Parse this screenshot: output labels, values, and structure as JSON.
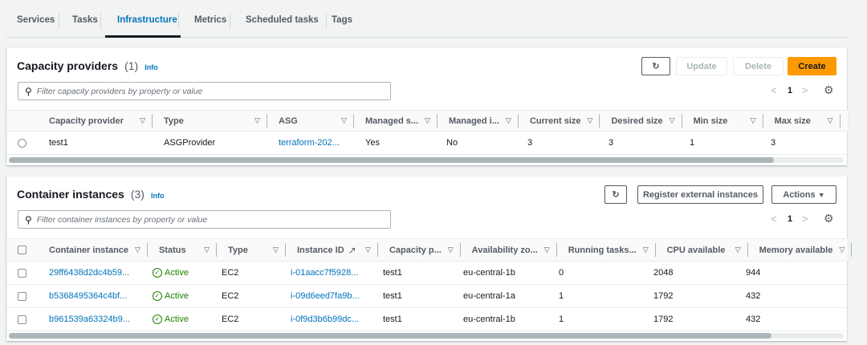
{
  "tabs": [
    {
      "label": "Services"
    },
    {
      "label": "Tasks"
    },
    {
      "label": "Infrastructure",
      "active": true
    },
    {
      "label": "Metrics"
    },
    {
      "label": "Scheduled tasks"
    },
    {
      "label": "Tags"
    }
  ],
  "capacity": {
    "title": "Capacity providers",
    "count": "(1)",
    "info": "Info",
    "refresh_icon": "refresh-icon",
    "update": "Update",
    "delete": "Delete",
    "create": "Create",
    "filter_placeholder": "Filter capacity providers by property or value",
    "page": "1",
    "columns": [
      "Capacity provider",
      "Type",
      "ASG",
      "Managed s...",
      "Managed i...",
      "Current size",
      "Desired size",
      "Min size",
      "Max size"
    ],
    "rows": [
      [
        "test1",
        "ASGProvider",
        "terraform-202...",
        "Yes",
        "No",
        "3",
        "3",
        "1",
        "3"
      ]
    ]
  },
  "instances": {
    "title": "Container instances",
    "count": "(3)",
    "info": "Info",
    "register": "Register external instances",
    "actions": "Actions",
    "filter_placeholder": "Filter container instances by property or value",
    "page": "1",
    "columns": [
      "Container instance",
      "Status",
      "Type",
      "Instance ID",
      "Capacity p...",
      "Availability zo...",
      "Running tasks...",
      "CPU available",
      "Memory available"
    ],
    "rows": [
      [
        "29ff6438d2dc4b59...",
        "Active",
        "EC2",
        "i-01aacc7f5928...",
        "test1",
        "eu-central-1b",
        "0",
        "2048",
        "944"
      ],
      [
        "b5368495364c4bf...",
        "Active",
        "EC2",
        "i-09d6eed7fa9b...",
        "test1",
        "eu-central-1a",
        "1",
        "1792",
        "432"
      ],
      [
        "b961539a63324b9...",
        "Active",
        "EC2",
        "i-0f9d3b6b99dc...",
        "test1",
        "eu-central-1b",
        "1",
        "1792",
        "432"
      ]
    ]
  },
  "colors": {
    "accent": "#0073bb",
    "primary": "#ff9900",
    "success": "#1d8102"
  }
}
